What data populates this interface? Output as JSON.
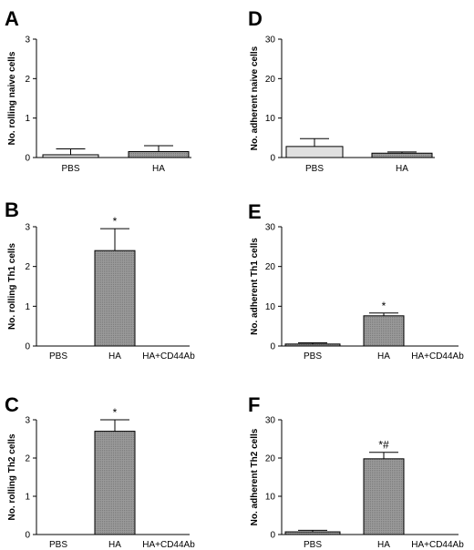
{
  "chart_data": [
    {
      "panel": "A",
      "type": "bar",
      "ylabel": "No. rolling naive cells",
      "ylim": [
        0,
        3
      ],
      "yticks": [
        0,
        1,
        2,
        3
      ],
      "categories": [
        "PBS",
        "HA"
      ],
      "values": [
        0.07,
        0.15
      ],
      "errors": [
        0.15,
        0.15
      ],
      "colors": [
        "#e0e0e0",
        "#9a9a9a"
      ],
      "annotations": [
        "",
        ""
      ]
    },
    {
      "panel": "D",
      "type": "bar",
      "ylabel": "No. adherent naive cells",
      "ylim": [
        0,
        30
      ],
      "yticks": [
        0,
        10,
        20,
        30
      ],
      "categories": [
        "PBS",
        "HA"
      ],
      "values": [
        2.8,
        1.1
      ],
      "errors": [
        2.0,
        0.3
      ],
      "colors": [
        "#e0e0e0",
        "#9a9a9a"
      ],
      "annotations": [
        "",
        ""
      ]
    },
    {
      "panel": "B",
      "type": "bar",
      "ylabel": "No. rolling Th1 cells",
      "ylim": [
        0,
        3
      ],
      "yticks": [
        0,
        1,
        2,
        3
      ],
      "categories": [
        "PBS",
        "HA",
        "HA+CD44Ab"
      ],
      "values": [
        0,
        2.4,
        0
      ],
      "errors": [
        0,
        0.55,
        0
      ],
      "colors": [
        "#9a9a9a",
        "#9a9a9a",
        "#9a9a9a"
      ],
      "annotations": [
        "",
        "*",
        ""
      ]
    },
    {
      "panel": "E",
      "type": "bar",
      "ylabel": "No. adherent Th1 cells",
      "ylim": [
        0,
        30
      ],
      "yticks": [
        0,
        10,
        20,
        30
      ],
      "categories": [
        "PBS",
        "HA",
        "HA+CD44Ab"
      ],
      "values": [
        0.5,
        7.6,
        0
      ],
      "errors": [
        0.3,
        0.7,
        0
      ],
      "colors": [
        "#9a9a9a",
        "#9a9a9a",
        "#9a9a9a"
      ],
      "annotations": [
        "",
        "*",
        ""
      ]
    },
    {
      "panel": "C",
      "type": "bar",
      "ylabel": "No. rolling Th2 cells",
      "ylim": [
        0,
        3
      ],
      "yticks": [
        0,
        1,
        2,
        3
      ],
      "categories": [
        "PBS",
        "HA",
        "HA+CD44Ab"
      ],
      "values": [
        0,
        2.7,
        0
      ],
      "errors": [
        0,
        0.3,
        0
      ],
      "colors": [
        "#9a9a9a",
        "#9a9a9a",
        "#9a9a9a"
      ],
      "annotations": [
        "",
        "*",
        ""
      ]
    },
    {
      "panel": "F",
      "type": "bar",
      "ylabel": "No. adherent Th2 cells",
      "ylim": [
        0,
        30
      ],
      "yticks": [
        0,
        10,
        20,
        30
      ],
      "categories": [
        "PBS",
        "HA",
        "HA+CD44Ab"
      ],
      "values": [
        0.7,
        19.8,
        0
      ],
      "errors": [
        0.4,
        1.7,
        0
      ],
      "colors": [
        "#9a9a9a",
        "#9a9a9a",
        "#9a9a9a"
      ],
      "annotations": [
        "",
        "*#",
        ""
      ]
    }
  ]
}
